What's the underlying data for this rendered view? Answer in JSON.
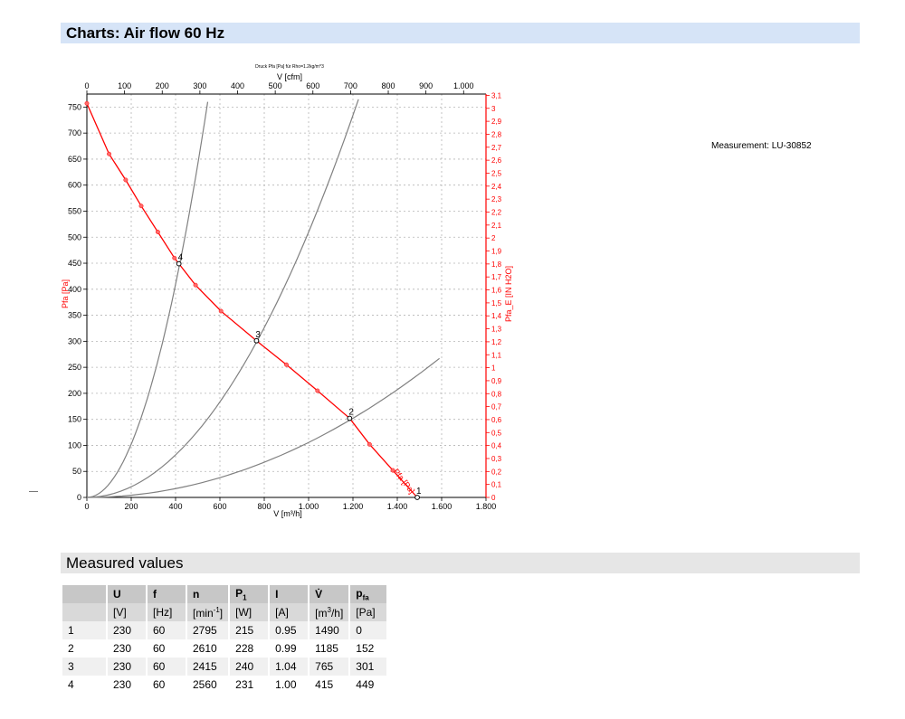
{
  "header": {
    "title": "Charts: Air flow 60 Hz"
  },
  "measurement_label": "Measurement: LU-30852",
  "chart_data": {
    "type": "line",
    "title": "Druck Pfa [Pa] für Rho=1.2kg/m^3",
    "xlabel": "V [m³/h]",
    "xlabel_top": "V [cfm]",
    "ylabel": "Pfa [Pa]",
    "ylabel_right": "Pfa_E [IN H2O]",
    "xlim": [
      0,
      1800
    ],
    "ylim": [
      0,
      775
    ],
    "xlim_top": [
      0,
      1059.4
    ],
    "ylim_right": [
      0,
      3.11
    ],
    "x_ticks": [
      "0",
      "200",
      "400",
      "600",
      "800",
      "1.000",
      "1.200",
      "1.400",
      "1.600",
      "1.800"
    ],
    "y_ticks": [
      "0",
      "50",
      "100",
      "150",
      "200",
      "250",
      "300",
      "350",
      "400",
      "450",
      "500",
      "550",
      "600",
      "650",
      "700",
      "750"
    ],
    "x_top_ticks": [
      "0",
      "100",
      "200",
      "300",
      "400",
      "500",
      "600",
      "700",
      "800",
      "900",
      "1.000"
    ],
    "y_right_ticks": [
      "0",
      "0,1",
      "0,2",
      "0,3",
      "0,4",
      "0,5",
      "0,6",
      "0,7",
      "0,8",
      "0,9",
      "1",
      "1,1",
      "1,2",
      "1,3",
      "1,4",
      "1,5",
      "1,6",
      "1,7",
      "1,8",
      "1,9",
      "2",
      "2,1",
      "2,2",
      "2,3",
      "2,4",
      "2,5",
      "2,6",
      "2,7",
      "2,8",
      "2,9",
      "3",
      "3,1"
    ],
    "grid": true,
    "series": [
      {
        "name": "Pfa [Pa]",
        "color": "#ff0000",
        "x": [
          0,
          100,
          175,
          245,
          320,
          395,
          415,
          490,
          605,
          765,
          900,
          1040,
          1185,
          1275,
          1380,
          1490
        ],
        "y": [
          757,
          660,
          610,
          560,
          510,
          460,
          449,
          408,
          358,
          301,
          255,
          205,
          152,
          102,
          52,
          0
        ]
      }
    ],
    "system_curves": [
      {
        "color": "#808080",
        "x": [
          0,
          545
        ],
        "y": [
          0,
          760
        ]
      },
      {
        "color": "#808080",
        "x": [
          0,
          1225
        ],
        "y": [
          0,
          765
        ]
      },
      {
        "color": "#808080",
        "x": [
          0,
          1590
        ],
        "y": [
          0,
          267
        ]
      }
    ],
    "operating_points": [
      {
        "label": "1",
        "x": 1490,
        "y": 0
      },
      {
        "label": "2",
        "x": 1185,
        "y": 152
      },
      {
        "label": "3",
        "x": 765,
        "y": 301
      },
      {
        "label": "4",
        "x": 415,
        "y": 449
      }
    ],
    "series_label": "Pfa [Pa]"
  },
  "measured": {
    "title": "Measured values",
    "headers": [
      {
        "main": "U",
        "unit": "[V]"
      },
      {
        "main": "f",
        "unit": "[Hz]"
      },
      {
        "main": "n",
        "unit": "[min-1]"
      },
      {
        "main": "P1",
        "unit": "[W]"
      },
      {
        "main": "I",
        "unit": "[A]"
      },
      {
        "main": "V̇",
        "unit": "[m3/h]"
      },
      {
        "main": "pfa",
        "unit": "[Pa]"
      }
    ],
    "rows": [
      [
        "1",
        "230",
        "60",
        "2795",
        "215",
        "0.95",
        "1490",
        "0"
      ],
      [
        "2",
        "230",
        "60",
        "2610",
        "228",
        "0.99",
        "1185",
        "152"
      ],
      [
        "3",
        "230",
        "60",
        "2415",
        "240",
        "1.04",
        "765",
        "301"
      ],
      [
        "4",
        "230",
        "60",
        "2560",
        "231",
        "1.00",
        "415",
        "449"
      ]
    ]
  }
}
